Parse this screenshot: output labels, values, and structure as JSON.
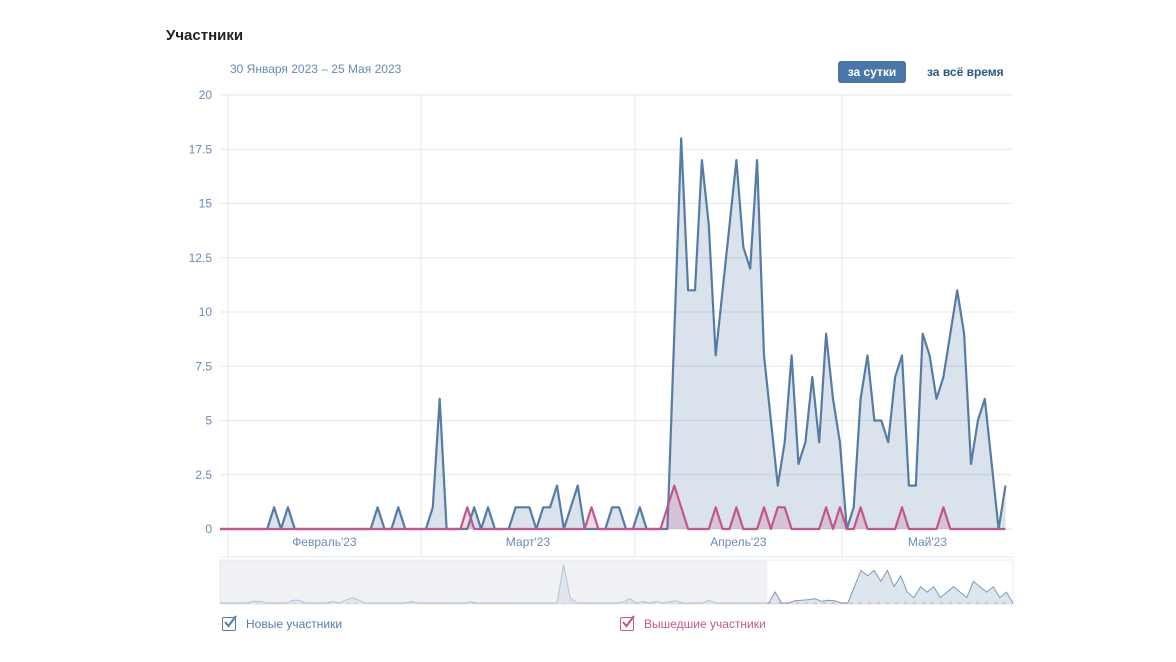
{
  "header": {
    "title": "Участники",
    "date_range": "30 Января 2023 – 25 Мая 2023",
    "period_buttons": [
      {
        "label": "за сутки",
        "active": true
      },
      {
        "label": "за всё время",
        "active": false
      }
    ]
  },
  "colors": {
    "new": "#567ca6",
    "left": "#c2578c",
    "button": "#4a76a8",
    "grid": "#e3e8ef"
  },
  "chart_data": {
    "type": "area",
    "title": "Участники",
    "x_start": "2023-01-30",
    "x_end": "2023-05-25",
    "x_unit": "day",
    "ylim": [
      0,
      20
    ],
    "y_ticks": [
      "0",
      "2.5",
      "5",
      "7.5",
      "10",
      "12.5",
      "15",
      "17.5",
      "20"
    ],
    "month_labels": [
      "Февраль'23",
      "Март'23",
      "Апрель'23",
      "Май'23"
    ],
    "month_start_index": [
      2,
      30,
      61,
      91
    ],
    "grid": true,
    "legend_position": "bottom",
    "series": [
      {
        "name": "Новые участники",
        "values": [
          0,
          0,
          0,
          0,
          0,
          0,
          0,
          0,
          0,
          1,
          0,
          1,
          0,
          0,
          0,
          0,
          0,
          0,
          0,
          0,
          0,
          0,
          0,
          0,
          1,
          0,
          0,
          1,
          0,
          0,
          0,
          0,
          1,
          6,
          0,
          0,
          0,
          0,
          1,
          0,
          1,
          0,
          0,
          0,
          1,
          1,
          1,
          0,
          1,
          1,
          2,
          0,
          1,
          2,
          0,
          0,
          0,
          0,
          1,
          1,
          0,
          0,
          1,
          0,
          0,
          0,
          0,
          9,
          18,
          11,
          11,
          17,
          14,
          8,
          11,
          14,
          17,
          13,
          12,
          17,
          8,
          5,
          2,
          4,
          8,
          3,
          4,
          7,
          4,
          9,
          6,
          4,
          0,
          1,
          6,
          8,
          5,
          5,
          4,
          7,
          8,
          2,
          2,
          9,
          8,
          6,
          7,
          9,
          11,
          9,
          3,
          5,
          6,
          3,
          0,
          2
        ]
      },
      {
        "name": "Вышедшие участники",
        "values": [
          0,
          0,
          0,
          0,
          0,
          0,
          0,
          0,
          0,
          0,
          0,
          0,
          0,
          0,
          0,
          0,
          0,
          0,
          0,
          0,
          0,
          0,
          0,
          0,
          0,
          0,
          0,
          0,
          0,
          0,
          0,
          0,
          0,
          0,
          0,
          0,
          0,
          1,
          0,
          0,
          0,
          0,
          0,
          0,
          0,
          0,
          0,
          0,
          0,
          0,
          0,
          0,
          0,
          0,
          0,
          1,
          0,
          0,
          0,
          0,
          0,
          0,
          0,
          0,
          0,
          0,
          1,
          2,
          1,
          0,
          0,
          0,
          0,
          1,
          0,
          0,
          1,
          0,
          0,
          0,
          1,
          0,
          1,
          1,
          0,
          0,
          0,
          0,
          0,
          1,
          0,
          1,
          0,
          0,
          1,
          0,
          0,
          0,
          0,
          0,
          1,
          0,
          0,
          0,
          0,
          0,
          1,
          0,
          0,
          0,
          0,
          0,
          0,
          0,
          0,
          0
        ]
      }
    ],
    "navigator": {
      "selected_fraction": [
        0.69,
        1.0
      ],
      "values": [
        0,
        0,
        0,
        0,
        0,
        0.3,
        0.3,
        0,
        0,
        0,
        0,
        0.5,
        0.5,
        0,
        0,
        0,
        0,
        0.3,
        0,
        0.5,
        1,
        0.5,
        0,
        0,
        0,
        0,
        0,
        0,
        0,
        0.3,
        0,
        0,
        0,
        0,
        0,
        0,
        0,
        0,
        0.2,
        0,
        0,
        0,
        0,
        0,
        0,
        0,
        0,
        0,
        0,
        0,
        0,
        0,
        7,
        1,
        0,
        0,
        0,
        0,
        0,
        0,
        0,
        0.2,
        0.8,
        0,
        0.3,
        0,
        0.3,
        0,
        0.2,
        0.4,
        0,
        0,
        0,
        0,
        0.5,
        0,
        0,
        0,
        0,
        0,
        0,
        0,
        0,
        0,
        2,
        0,
        0,
        0.4,
        0.5,
        0.6,
        0.8,
        0.3,
        0.5,
        0.4,
        0,
        0,
        3,
        6,
        5,
        6,
        4,
        6,
        3,
        5,
        2,
        1,
        3,
        2,
        3,
        1,
        2,
        3,
        2,
        1,
        4,
        3,
        2,
        3,
        1,
        2,
        0
      ]
    }
  }
}
